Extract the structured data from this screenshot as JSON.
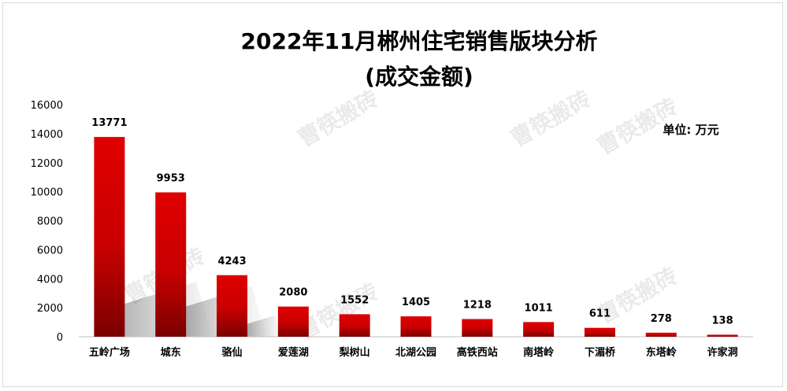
{
  "chart_data": {
    "type": "bar",
    "title": "2022年11月郴州住宅销售版块分析",
    "subtitle": "(成交金额)",
    "unit_label": "单位: 万元",
    "watermark": "曹筷搬砖",
    "categories": [
      "五岭广场",
      "城东",
      "骆仙",
      "爱莲湖",
      "梨树山",
      "北湖公园",
      "高铁西站",
      "南塔岭",
      "下湄桥",
      "东塔岭",
      "许家洞"
    ],
    "values": [
      13771,
      9953,
      4243,
      2080,
      1552,
      1405,
      1218,
      1011,
      611,
      278,
      138
    ],
    "yticks": [
      0,
      2000,
      4000,
      6000,
      8000,
      10000,
      12000,
      14000,
      16000
    ],
    "ylim": [
      0,
      16000
    ],
    "xlabel": "",
    "ylabel": "",
    "grid": false,
    "legend": "none",
    "colors": {
      "bar_top": "#e00000",
      "bar_bottom": "#7a0000",
      "axis": "#bfbfbf"
    }
  }
}
